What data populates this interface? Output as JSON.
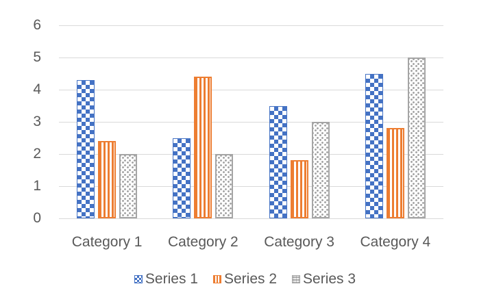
{
  "chart_data": {
    "type": "bar",
    "title": "",
    "xlabel": "",
    "ylabel": "",
    "categories": [
      "Category 1",
      "Category 2",
      "Category 3",
      "Category 4"
    ],
    "series": [
      {
        "name": "Series 1",
        "values": [
          4.3,
          2.5,
          3.5,
          4.5
        ],
        "color": "#4472c4",
        "pattern": "checkerboard"
      },
      {
        "name": "Series 2",
        "values": [
          2.4,
          4.4,
          1.8,
          2.8
        ],
        "color": "#ed7d31",
        "pattern": "vertical-stripes"
      },
      {
        "name": "Series 3",
        "values": [
          2.0,
          2.0,
          3.0,
          5.0
        ],
        "color": "#a5a5a5",
        "pattern": "dotted-grid"
      }
    ],
    "ylim": [
      0,
      6
    ],
    "yticks": [
      "0",
      "1",
      "2",
      "3",
      "4",
      "5",
      "6"
    ],
    "grid": true,
    "legend_position": "bottom"
  }
}
